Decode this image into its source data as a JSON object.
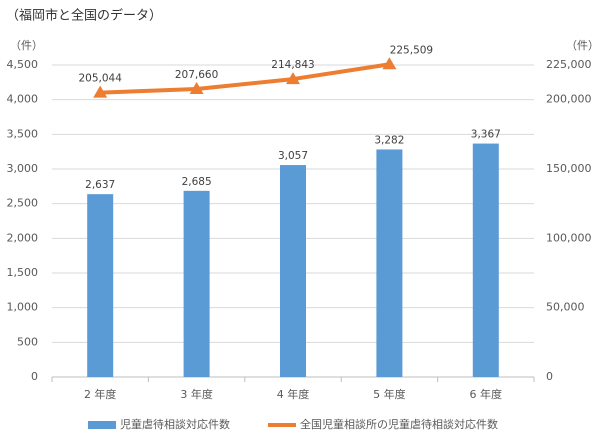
{
  "chart_data": {
    "type": "bar+line",
    "title": "（福岡市と全国のデータ）",
    "y_unit": "（件）",
    "y2_unit": "（件）",
    "categories": [
      "2 年度",
      "3 年度",
      "4 年度",
      "5 年度",
      "6 年度"
    ],
    "series": [
      {
        "name": "児童虐待相談対応件数",
        "type": "bar",
        "color": "#5b9bd5",
        "values": [
          2637,
          2685,
          3057,
          3282,
          3367
        ],
        "value_labels": [
          "2,637",
          "2,685",
          "3,057",
          "3,282",
          "3,367"
        ]
      },
      {
        "name": "全国児童相談所の児童虐待相談対応件数",
        "type": "line",
        "axis": "y2",
        "color": "#ed7d31",
        "values": [
          205044,
          207660,
          214843,
          225509,
          null
        ],
        "value_labels": [
          "205,044",
          "207,660",
          "214,843",
          "225,509",
          null
        ]
      }
    ],
    "ylim": [
      0,
      4500
    ],
    "yticks": [
      0,
      500,
      {
        "value": 1000,
        "label": "1,000"
      },
      {
        "value": 1500,
        "label": "1,500"
      },
      {
        "value": 2000,
        "label": "2,000"
      },
      {
        "value": 2500,
        "label": "2,500"
      },
      {
        "value": 3000,
        "label": "3,000"
      },
      {
        "value": 3500,
        "label": "3,500"
      },
      {
        "value": 4000,
        "label": "4,000"
      },
      {
        "value": 4500,
        "label": "4,500"
      }
    ],
    "y2lim": [
      0,
      225000
    ],
    "y2ticks": [
      0,
      {
        "value": 50000,
        "label": "50,000"
      },
      {
        "value": 100000,
        "label": "100,000"
      },
      {
        "value": 150000,
        "label": "150,000"
      },
      {
        "value": 200000,
        "label": "200,000"
      },
      {
        "value": 225000,
        "label": "225,000"
      }
    ],
    "grid": true,
    "legend": "bottom"
  }
}
